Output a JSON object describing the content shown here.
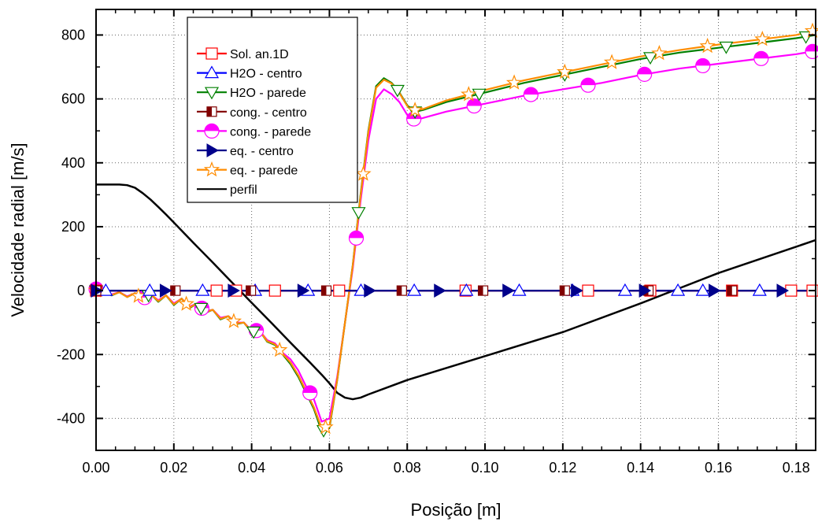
{
  "chart_data": {
    "type": "line",
    "title": "",
    "xlabel": "Posição [m]",
    "ylabel": "Velocidade radial [m/s]",
    "xlim": [
      0.0,
      0.185
    ],
    "ylim": [
      -500,
      880
    ],
    "xticks": [
      0.0,
      0.02,
      0.04,
      0.06,
      0.08,
      0.1,
      0.12,
      0.14,
      0.16,
      0.18
    ],
    "xtick_labels": [
      "0.00",
      "0.02",
      "0.04",
      "0.06",
      "0.08",
      "0.10",
      "0.12",
      "0.14",
      "0.16",
      "0.18"
    ],
    "yticks": [
      -400,
      -200,
      0,
      200,
      400,
      600,
      800
    ],
    "ytick_labels": [
      "-400",
      "-200",
      "0",
      "200",
      "400",
      "600",
      "800"
    ],
    "grid": true,
    "legend_position": "top-left",
    "series": [
      {
        "name": "Sol. an.1D",
        "color": "#ff0000",
        "marker": "square-open",
        "x": [
          0.0,
          0.01,
          0.03,
          0.046,
          0.0625,
          0.095,
          0.125,
          0.142,
          0.163,
          0.179,
          0.184
        ],
        "y": [
          0,
          0,
          0,
          0,
          0,
          0,
          0,
          0,
          0,
          0,
          0
        ],
        "marker_x": [
          0.0,
          0.031,
          0.036,
          0.046,
          0.0625,
          0.095,
          0.1265,
          0.1425,
          0.1635,
          0.1787,
          0.1842
        ]
      },
      {
        "name": "H2O - centro",
        "color": "#0000ff",
        "marker": "triangle-up-open",
        "x": [
          0.0,
          0.185
        ],
        "y": [
          0,
          0
        ],
        "marker_x": [
          0.0025,
          0.0138,
          0.0274,
          0.0409,
          0.0545,
          0.0681,
          0.0818,
          0.0952,
          0.1088,
          0.1225,
          0.136,
          0.1496,
          0.156,
          0.1706
        ]
      },
      {
        "name": "H2O - parede",
        "color": "#008000",
        "marker": "triangle-down-open",
        "x": [
          0.0,
          0.002,
          0.004,
          0.006,
          0.008,
          0.01,
          0.012,
          0.014,
          0.016,
          0.018,
          0.02,
          0.022,
          0.024,
          0.026,
          0.028,
          0.03,
          0.032,
          0.034,
          0.036,
          0.038,
          0.04,
          0.042,
          0.044,
          0.046,
          0.048,
          0.05,
          0.052,
          0.054,
          0.056,
          0.058,
          0.06,
          0.062,
          0.064,
          0.066,
          0.068,
          0.07,
          0.072,
          0.074,
          0.076,
          0.078,
          0.08,
          0.082,
          0.084,
          0.09,
          0.1,
          0.11,
          0.12,
          0.13,
          0.14,
          0.15,
          0.16,
          0.17,
          0.18,
          0.185
        ],
        "y": [
          0,
          -5,
          -15,
          -5,
          -20,
          -8,
          -30,
          -10,
          -35,
          -15,
          -45,
          -25,
          -55,
          -40,
          -70,
          -60,
          -90,
          -80,
          -105,
          -100,
          -130,
          -125,
          -160,
          -170,
          -200,
          -230,
          -270,
          -320,
          -370,
          -440,
          -430,
          -280,
          -100,
          80,
          300,
          500,
          640,
          665,
          650,
          620,
          580,
          560,
          565,
          590,
          620,
          650,
          675,
          700,
          725,
          745,
          760,
          775,
          790,
          800
        ],
        "marker_x": [
          0.0,
          0.0135,
          0.027,
          0.0405,
          0.0585,
          0.0675,
          0.0775,
          0.082,
          0.0985,
          0.1205,
          0.1425,
          0.162,
          0.1825
        ]
      },
      {
        "name": "cong. - centro",
        "color": "#800000",
        "marker": "square-half",
        "x": [
          0.0,
          0.185
        ],
        "y": [
          0,
          0
        ],
        "marker_x": [
          0.0,
          0.0204,
          0.0398,
          0.0592,
          0.0786,
          0.0995,
          0.1205,
          0.142,
          0.1635
        ]
      },
      {
        "name": "cong. - parede",
        "color": "#ff00ff",
        "marker": "circle-half",
        "x": [
          0.0,
          0.002,
          0.004,
          0.006,
          0.008,
          0.01,
          0.012,
          0.014,
          0.016,
          0.018,
          0.02,
          0.022,
          0.024,
          0.026,
          0.028,
          0.03,
          0.032,
          0.034,
          0.036,
          0.038,
          0.04,
          0.042,
          0.044,
          0.046,
          0.048,
          0.05,
          0.052,
          0.054,
          0.056,
          0.058,
          0.06,
          0.062,
          0.064,
          0.066,
          0.068,
          0.07,
          0.072,
          0.074,
          0.076,
          0.078,
          0.08,
          0.082,
          0.084,
          0.09,
          0.1,
          0.11,
          0.12,
          0.13,
          0.14,
          0.15,
          0.16,
          0.17,
          0.18,
          0.185
        ],
        "y": [
          5,
          -5,
          -12,
          -5,
          -18,
          -8,
          -25,
          -12,
          -30,
          -15,
          -40,
          -25,
          -50,
          -40,
          -65,
          -60,
          -85,
          -80,
          -100,
          -100,
          -125,
          -125,
          -155,
          -165,
          -195,
          -215,
          -250,
          -300,
          -340,
          -410,
          -400,
          -270,
          -100,
          70,
          280,
          470,
          600,
          630,
          615,
          590,
          550,
          535,
          540,
          560,
          585,
          610,
          630,
          650,
          675,
          695,
          710,
          725,
          740,
          750
        ],
        "marker_x": [
          0.0,
          0.0125,
          0.0272,
          0.0412,
          0.055,
          0.0669,
          0.0817,
          0.0972,
          0.1118,
          0.1265,
          0.141,
          0.156,
          0.171,
          0.1842
        ]
      },
      {
        "name": "eq. - centro",
        "color": "#00008b",
        "marker": "triangle-right",
        "x": [
          0.0,
          0.185
        ],
        "y": [
          0,
          0
        ],
        "marker_x": [
          0.0,
          0.0177,
          0.0352,
          0.0531,
          0.0702,
          0.0882,
          0.1058,
          0.1234,
          0.1409,
          0.1588,
          0.1763
        ]
      },
      {
        "name": "eq. - parede",
        "color": "#ff8c00",
        "marker": "star-open",
        "x": [
          0.0,
          0.002,
          0.004,
          0.006,
          0.008,
          0.01,
          0.012,
          0.014,
          0.016,
          0.018,
          0.02,
          0.022,
          0.024,
          0.026,
          0.028,
          0.03,
          0.032,
          0.034,
          0.036,
          0.038,
          0.04,
          0.042,
          0.044,
          0.046,
          0.048,
          0.05,
          0.052,
          0.054,
          0.056,
          0.058,
          0.06,
          0.062,
          0.064,
          0.066,
          0.068,
          0.07,
          0.072,
          0.074,
          0.076,
          0.078,
          0.08,
          0.082,
          0.084,
          0.09,
          0.1,
          0.11,
          0.12,
          0.13,
          0.14,
          0.15,
          0.16,
          0.17,
          0.18,
          0.185
        ],
        "y": [
          0,
          -5,
          -14,
          -5,
          -20,
          -8,
          -28,
          -10,
          -33,
          -15,
          -43,
          -25,
          -53,
          -40,
          -68,
          -60,
          -88,
          -80,
          -103,
          -100,
          -128,
          -125,
          -158,
          -168,
          -198,
          -225,
          -265,
          -315,
          -365,
          -430,
          -425,
          -278,
          -100,
          78,
          295,
          495,
          635,
          660,
          648,
          618,
          578,
          565,
          568,
          595,
          628,
          658,
          683,
          708,
          733,
          753,
          770,
          785,
          800,
          815
        ],
        "marker_x": [
          0.0,
          0.0109,
          0.0232,
          0.0354,
          0.0472,
          0.059,
          0.0687,
          0.082,
          0.0958,
          0.1075,
          0.1205,
          0.1326,
          0.1448,
          0.1572,
          0.1713,
          0.1842
        ]
      },
      {
        "name": "perfil",
        "color": "#000000",
        "marker": "none",
        "x": [
          0.0,
          0.002,
          0.004,
          0.006,
          0.008,
          0.01,
          0.012,
          0.014,
          0.016,
          0.018,
          0.02,
          0.025,
          0.03,
          0.035,
          0.04,
          0.045,
          0.05,
          0.055,
          0.058,
          0.06,
          0.062,
          0.064,
          0.066,
          0.068,
          0.07,
          0.08,
          0.1,
          0.12,
          0.14,
          0.16,
          0.185
        ],
        "y": [
          332,
          332,
          332,
          332,
          330,
          322,
          305,
          285,
          262,
          238,
          213,
          150,
          88,
          25,
          -38,
          -100,
          -163,
          -225,
          -263,
          -290,
          -320,
          -335,
          -340,
          -335,
          -325,
          -280,
          -205,
          -130,
          -40,
          55,
          158
        ]
      }
    ]
  }
}
